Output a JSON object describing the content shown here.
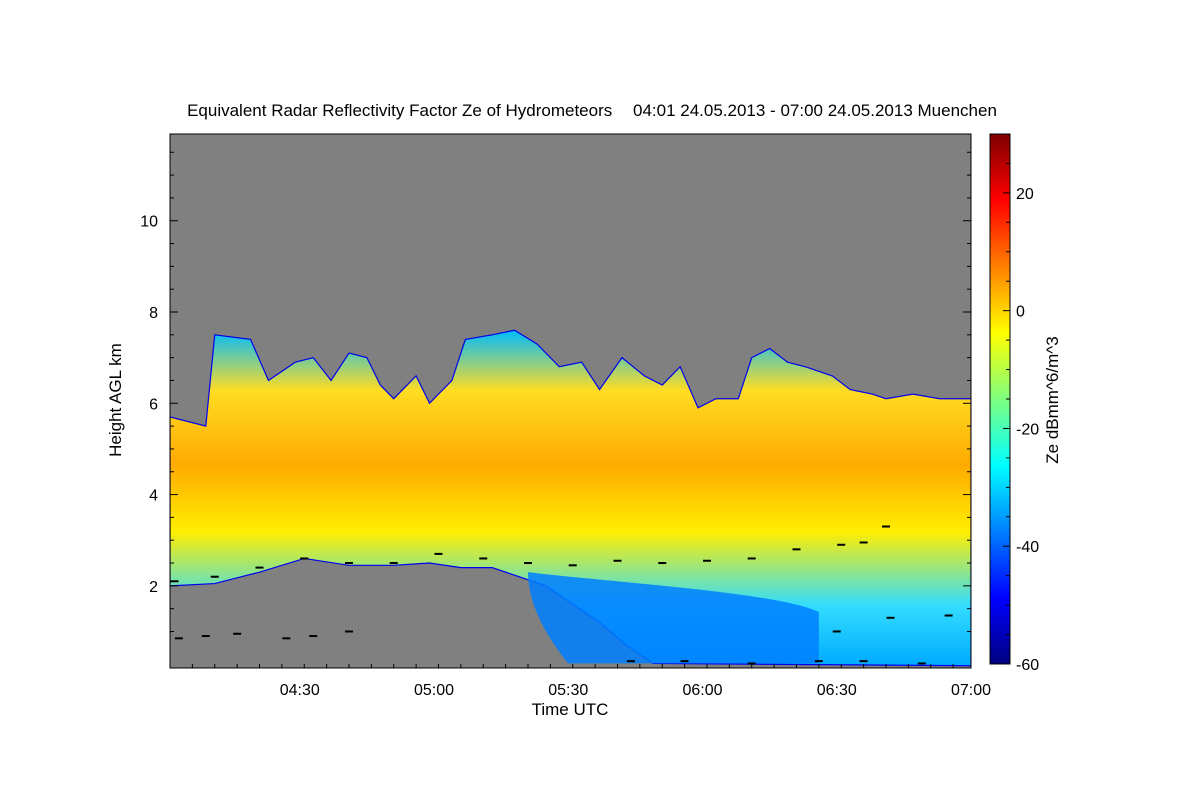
{
  "chart_data": {
    "type": "heatmap",
    "title": "Equivalent Radar Reflectivity Factor Ze of Hydrometeors",
    "subtitle": "04:01 24.05.2013 - 07:00 24.05.2013 Muenchen",
    "xlabel": "Time UTC",
    "ylabel": "Height AGL km",
    "colorbar_label": "Ze dBmm^6/m^3",
    "x_range": [
      "04:01",
      "07:00"
    ],
    "x_range_minutes": [
      0,
      179
    ],
    "y_range": [
      0.2,
      11.9
    ],
    "clim": [
      -60,
      30
    ],
    "x_ticks": [
      {
        "minute": 29,
        "label": "04:30"
      },
      {
        "minute": 59,
        "label": "05:00"
      },
      {
        "minute": 89,
        "label": "05:30"
      },
      {
        "minute": 119,
        "label": "06:00"
      },
      {
        "minute": 149,
        "label": "06:30"
      },
      {
        "minute": 179,
        "label": "07:00"
      }
    ],
    "y_ticks": [
      {
        "value": 2,
        "label": "2"
      },
      {
        "value": 4,
        "label": "4"
      },
      {
        "value": 6,
        "label": "6"
      },
      {
        "value": 8,
        "label": "8"
      },
      {
        "value": 10,
        "label": "10"
      }
    ],
    "colorbar_ticks": [
      {
        "value": -60,
        "label": "-60"
      },
      {
        "value": -40,
        "label": "-40"
      },
      {
        "value": -20,
        "label": "-20"
      },
      {
        "value": 0,
        "label": "0"
      },
      {
        "value": 20,
        "label": "20"
      }
    ],
    "background_color": "#808080",
    "colormap": [
      "#00007f",
      "#0000ff",
      "#007fff",
      "#00ffff",
      "#7fff7f",
      "#ffff00",
      "#ff7f00",
      "#ff0000",
      "#7f0000"
    ],
    "main_echo": {
      "top_km_by_minute": [
        [
          0,
          5.7
        ],
        [
          8,
          5.5
        ],
        [
          10,
          7.5
        ],
        [
          18,
          7.4
        ],
        [
          22,
          6.5
        ],
        [
          28,
          6.9
        ],
        [
          32,
          7.0
        ],
        [
          36,
          6.5
        ],
        [
          40,
          7.1
        ],
        [
          44,
          7.0
        ],
        [
          47,
          6.4
        ],
        [
          50,
          6.1
        ],
        [
          55,
          6.6
        ],
        [
          58,
          6.0
        ],
        [
          63,
          6.5
        ],
        [
          66,
          7.4
        ],
        [
          72,
          7.5
        ],
        [
          77,
          7.6
        ],
        [
          82,
          7.3
        ],
        [
          87,
          6.8
        ],
        [
          92,
          6.9
        ],
        [
          96,
          6.3
        ],
        [
          101,
          7.0
        ],
        [
          106,
          6.6
        ],
        [
          110,
          6.4
        ],
        [
          114,
          6.8
        ],
        [
          118,
          5.9
        ],
        [
          122,
          6.1
        ],
        [
          127,
          6.1
        ],
        [
          130,
          7.0
        ],
        [
          134,
          7.2
        ],
        [
          138,
          6.9
        ],
        [
          142,
          6.8
        ],
        [
          148,
          6.6
        ],
        [
          152,
          6.3
        ],
        [
          157,
          6.2
        ],
        [
          160,
          6.1
        ],
        [
          166,
          6.2
        ],
        [
          172,
          6.1
        ],
        [
          179,
          6.1
        ]
      ],
      "base_km_by_minute": [
        [
          0,
          2.0
        ],
        [
          10,
          2.05
        ],
        [
          20,
          2.3
        ],
        [
          30,
          2.6
        ],
        [
          40,
          2.45
        ],
        [
          50,
          2.45
        ],
        [
          58,
          2.5
        ],
        [
          65,
          2.4
        ],
        [
          72,
          2.4
        ],
        [
          78,
          2.2
        ],
        [
          84,
          2.0
        ],
        [
          90,
          1.6
        ],
        [
          96,
          1.2
        ],
        [
          102,
          0.7
        ],
        [
          108,
          0.3
        ],
        [
          179,
          0.25
        ]
      ],
      "core_reflectivity_dbz": 0
    },
    "low_echo_region": {
      "minute_range": [
        80,
        145
      ],
      "height_range_km": [
        0.3,
        2.3
      ],
      "reflectivity_dbz": -40
    },
    "melting_layer_points_km": [
      [
        1,
        2.1
      ],
      [
        10,
        2.2
      ],
      [
        20,
        2.4
      ],
      [
        30,
        2.6
      ],
      [
        40,
        2.5
      ],
      [
        50,
        2.5
      ],
      [
        60,
        2.7
      ],
      [
        70,
        2.6
      ],
      [
        80,
        2.5
      ],
      [
        90,
        2.45
      ],
      [
        100,
        2.55
      ],
      [
        110,
        2.5
      ],
      [
        120,
        2.55
      ],
      [
        130,
        2.6
      ],
      [
        140,
        2.8
      ],
      [
        150,
        2.9
      ],
      [
        155,
        2.95
      ],
      [
        160,
        3.3
      ]
    ],
    "low_points_km": [
      [
        2,
        0.85
      ],
      [
        8,
        0.9
      ],
      [
        15,
        0.95
      ],
      [
        26,
        0.85
      ],
      [
        32,
        0.9
      ],
      [
        40,
        1.0
      ],
      [
        103,
        0.35
      ],
      [
        115,
        0.35
      ],
      [
        130,
        0.3
      ],
      [
        145,
        0.35
      ],
      [
        155,
        0.35
      ],
      [
        168,
        0.3
      ],
      [
        149,
        1.0
      ],
      [
        161,
        1.3
      ],
      [
        174,
        1.35
      ]
    ]
  }
}
